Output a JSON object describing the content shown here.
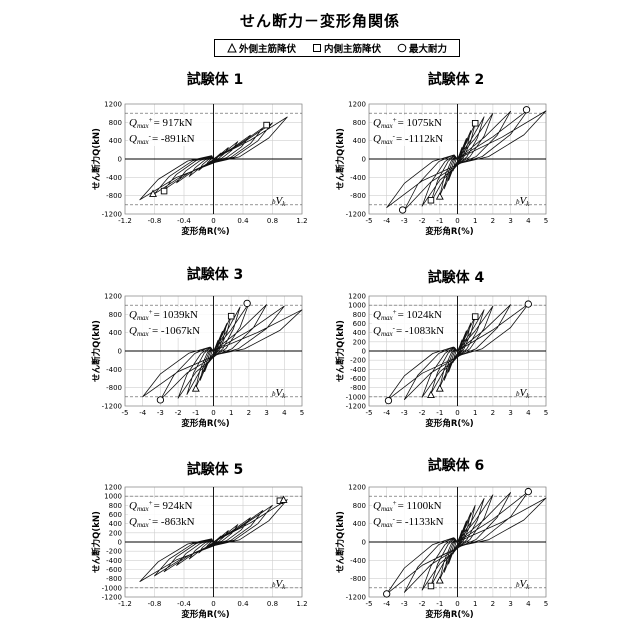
{
  "title": "せん断力－変形角関係",
  "legend": [
    {
      "symbol": "triangle",
      "label": "外側主筋降伏"
    },
    {
      "symbol": "square",
      "label": "内側主筋降伏"
    },
    {
      "symbol": "circle",
      "label": "最大耐力"
    }
  ],
  "chart_data": [
    {
      "type": "line",
      "title": "試験体 1",
      "xlabel": "変形角R(%)",
      "ylabel": "せん断力Q(kN)",
      "xlim": [
        -1.2,
        1.2
      ],
      "ylim": [
        -1200,
        1200
      ],
      "xticks": [
        "-1.2",
        "-0.8",
        "-0.4",
        "0",
        "0.4",
        "0.8",
        "1.2"
      ],
      "yticks": [
        "1200",
        "800",
        "400",
        "0",
        "-400",
        "-800",
        "-1200"
      ],
      "qmax_pos_label": "Q",
      "qmax_pos_sub": "max",
      "qmax_pos_sup": "+",
      "qmax_pos_value": "= 917kN",
      "qmax_neg_label": "Q",
      "qmax_neg_sub": "max",
      "qmax_neg_sup": "-",
      "qmax_neg_value": "= -891kN",
      "bvk_label": "V",
      "bvk_pre": "b",
      "bvk_sub": "k",
      "qmax_pos": 917,
      "qmax_neg": -891,
      "bvk": 1000,
      "loop_peaks": [
        0.1,
        0.2,
        0.33,
        0.5,
        0.67,
        0.8,
        1.0
      ],
      "envelope": [
        [
          0,
          0
        ],
        [
          0.1,
          130
        ],
        [
          0.2,
          250
        ],
        [
          0.33,
          380
        ],
        [
          0.5,
          520
        ],
        [
          0.67,
          680
        ],
        [
          0.8,
          790
        ],
        [
          1.0,
          917
        ]
      ],
      "neg_envelope": [
        [
          0,
          0
        ],
        [
          -0.1,
          -130
        ],
        [
          -0.2,
          -250
        ],
        [
          -0.33,
          -380
        ],
        [
          -0.5,
          -520
        ],
        [
          -0.67,
          -670
        ],
        [
          -0.8,
          -760
        ],
        [
          -1.0,
          -891
        ]
      ],
      "pinch": 0.05,
      "markers": [
        {
          "shape": "square",
          "x": 0.72,
          "y": 740
        },
        {
          "shape": "triangle",
          "x": -0.82,
          "y": -760
        },
        {
          "shape": "square",
          "x": -0.67,
          "y": -700
        }
      ]
    },
    {
      "type": "line",
      "title": "試験体 2",
      "xlabel": "変形角R(%)",
      "ylabel": "せん断力Q(kN)",
      "xlim": [
        -5,
        5
      ],
      "ylim": [
        -1200,
        1200
      ],
      "xticks": [
        "-5",
        "-4",
        "-3",
        "-2",
        "-1",
        "0",
        "1",
        "2",
        "3",
        "4",
        "5"
      ],
      "yticks": [
        "1200",
        "800",
        "400",
        "0",
        "-400",
        "-800",
        "-1200"
      ],
      "qmax_pos_label": "Q",
      "qmax_pos_sub": "max",
      "qmax_pos_sup": "+",
      "qmax_pos_value": "= 1075kN",
      "qmax_neg_label": "Q",
      "qmax_neg_sub": "max",
      "qmax_neg_sup": "-",
      "qmax_neg_value": "= -1112kN",
      "bvk_label": "V",
      "bvk_pre": "b",
      "bvk_sub": "k",
      "qmax_pos": 1075,
      "qmax_neg": -1112,
      "bvk": 1000,
      "loop_peaks": [
        0.25,
        0.5,
        0.75,
        1.0,
        1.5,
        2.0,
        3.0,
        4.0,
        5.0
      ],
      "envelope": [
        [
          0,
          0
        ],
        [
          0.25,
          250
        ],
        [
          0.5,
          450
        ],
        [
          0.75,
          620
        ],
        [
          1.0,
          780
        ],
        [
          1.5,
          920
        ],
        [
          2.0,
          1000
        ],
        [
          3.0,
          1040
        ],
        [
          4.0,
          1075
        ],
        [
          5.0,
          1050
        ]
      ],
      "neg_envelope": [
        [
          0,
          0
        ],
        [
          -0.25,
          -260
        ],
        [
          -0.5,
          -470
        ],
        [
          -0.75,
          -650
        ],
        [
          -1.0,
          -800
        ],
        [
          -1.5,
          -940
        ],
        [
          -2.0,
          -1030
        ],
        [
          -3.0,
          -1112
        ],
        [
          -4.0,
          -1060
        ]
      ],
      "pinch": 0.12,
      "markers": [
        {
          "shape": "circle",
          "x": 3.9,
          "y": 1075
        },
        {
          "shape": "circle",
          "x": -3.1,
          "y": -1112
        },
        {
          "shape": "square",
          "x": 1.0,
          "y": 780
        },
        {
          "shape": "triangle",
          "x": -1.0,
          "y": -820
        },
        {
          "shape": "square",
          "x": -1.5,
          "y": -900
        }
      ]
    },
    {
      "type": "line",
      "title": "試験体 3",
      "xlabel": "変形角R(%)",
      "ylabel": "せん断力Q(kN)",
      "xlim": [
        -5,
        5
      ],
      "ylim": [
        -1200,
        1200
      ],
      "xticks": [
        "-5",
        "-4",
        "-3",
        "-2",
        "-1",
        "0",
        "1",
        "2",
        "3",
        "4",
        "5"
      ],
      "yticks": [
        "1200",
        "800",
        "400",
        "0",
        "-400",
        "-800",
        "-1200"
      ],
      "qmax_pos_label": "Q",
      "qmax_pos_sub": "max",
      "qmax_pos_sup": "+",
      "qmax_pos_value": "= 1039kN",
      "qmax_neg_label": "Q",
      "qmax_neg_sub": "max",
      "qmax_neg_sup": "-",
      "qmax_neg_value": "= -1067kN",
      "bvk_label": "V",
      "bvk_pre": "b",
      "bvk_sub": "k",
      "qmax_pos": 1039,
      "qmax_neg": -1067,
      "bvk": 1000,
      "loop_peaks": [
        0.25,
        0.5,
        0.75,
        1.0,
        1.5,
        2.0,
        3.0,
        4.0,
        5.0
      ],
      "envelope": [
        [
          0,
          0
        ],
        [
          0.25,
          230
        ],
        [
          0.5,
          430
        ],
        [
          0.75,
          600
        ],
        [
          1.0,
          780
        ],
        [
          1.5,
          960
        ],
        [
          2.0,
          1039
        ],
        [
          3.0,
          1010
        ],
        [
          4.0,
          980
        ],
        [
          5.0,
          900
        ]
      ],
      "neg_envelope": [
        [
          0,
          0
        ],
        [
          -0.25,
          -240
        ],
        [
          -0.5,
          -450
        ],
        [
          -0.75,
          -640
        ],
        [
          -1.0,
          -800
        ],
        [
          -1.5,
          -950
        ],
        [
          -2.0,
          -1030
        ],
        [
          -3.0,
          -1067
        ],
        [
          -4.0,
          -1000
        ]
      ],
      "pinch": 0.12,
      "markers": [
        {
          "shape": "circle",
          "x": 1.9,
          "y": 1039
        },
        {
          "shape": "circle",
          "x": -3.0,
          "y": -1067
        },
        {
          "shape": "square",
          "x": 1.0,
          "y": 760
        },
        {
          "shape": "triangle",
          "x": -1.0,
          "y": -820
        }
      ]
    },
    {
      "type": "line",
      "title": "試験体 4",
      "xlabel": "変形角R(%)",
      "ylabel": "せん断力Q(kN)",
      "xlim": [
        -5,
        5
      ],
      "ylim": [
        -1200,
        1200
      ],
      "xticks": [
        "-5",
        "-4",
        "-3",
        "-2",
        "-1",
        "0",
        "1",
        "2",
        "3",
        "4",
        "5"
      ],
      "yticks": [
        "1200",
        "1000",
        "800",
        "600",
        "400",
        "200",
        "0",
        "-200",
        "-400",
        "-600",
        "-800",
        "-1000",
        "-1200"
      ],
      "qmax_pos_label": "Q",
      "qmax_pos_sub": "max",
      "qmax_pos_sup": "+",
      "qmax_pos_value": "= 1024kN",
      "qmax_neg_label": "Q",
      "qmax_neg_sub": "max",
      "qmax_neg_sup": "-",
      "qmax_neg_value": "= -1083kN",
      "bvk_label": "V",
      "bvk_pre": "b",
      "bvk_sub": "k",
      "qmax_pos": 1024,
      "qmax_neg": -1083,
      "bvk": 1000,
      "loop_peaks": [
        0.25,
        0.5,
        0.75,
        1.0,
        1.5,
        2.0,
        3.0,
        4.0
      ],
      "envelope": [
        [
          0,
          0
        ],
        [
          0.25,
          240
        ],
        [
          0.5,
          440
        ],
        [
          0.75,
          610
        ],
        [
          1.0,
          760
        ],
        [
          1.5,
          900
        ],
        [
          2.0,
          980
        ],
        [
          3.0,
          1010
        ],
        [
          4.0,
          1024
        ]
      ],
      "neg_envelope": [
        [
          0,
          0
        ],
        [
          -0.25,
          -250
        ],
        [
          -0.5,
          -460
        ],
        [
          -0.75,
          -640
        ],
        [
          -1.0,
          -790
        ],
        [
          -1.5,
          -930
        ],
        [
          -2.0,
          -1010
        ],
        [
          -3.0,
          -1060
        ],
        [
          -4.0,
          -1083
        ]
      ],
      "pinch": 0.12,
      "markers": [
        {
          "shape": "circle",
          "x": 4.0,
          "y": 1024
        },
        {
          "shape": "circle",
          "x": -3.9,
          "y": -1083
        },
        {
          "shape": "square",
          "x": 1.0,
          "y": 750
        },
        {
          "shape": "triangle",
          "x": -1.0,
          "y": -820
        },
        {
          "shape": "triangle",
          "x": -1.5,
          "y": -960
        }
      ]
    },
    {
      "type": "line",
      "title": "試験体 5",
      "xlabel": "変形角R(%)",
      "ylabel": "せん断力Q(kN)",
      "xlim": [
        -1.2,
        1.2
      ],
      "ylim": [
        -1200,
        1200
      ],
      "xticks": [
        "-1.2",
        "-0.8",
        "-0.4",
        "0",
        "0.4",
        "0.8",
        "1.2"
      ],
      "yticks": [
        "1200",
        "1000",
        "800",
        "600",
        "400",
        "200",
        "0",
        "-200",
        "-400",
        "-600",
        "-800",
        "-1000",
        "-1200"
      ],
      "qmax_pos_label": "Q",
      "qmax_pos_sub": "max",
      "qmax_pos_sup": "+",
      "qmax_pos_value": "= 924kN",
      "qmax_neg_label": "Q",
      "qmax_neg_sub": "max",
      "qmax_neg_sup": "-",
      "qmax_neg_value": "= -863kN",
      "bvk_label": "V",
      "bvk_pre": "b",
      "bvk_sub": "k",
      "qmax_pos": 924,
      "qmax_neg": -863,
      "bvk": 1000,
      "loop_peaks": [
        0.1,
        0.2,
        0.33,
        0.5,
        0.67,
        0.8,
        1.0
      ],
      "envelope": [
        [
          0,
          0
        ],
        [
          0.1,
          130
        ],
        [
          0.2,
          250
        ],
        [
          0.33,
          380
        ],
        [
          0.5,
          530
        ],
        [
          0.67,
          690
        ],
        [
          0.8,
          800
        ],
        [
          1.0,
          924
        ]
      ],
      "neg_envelope": [
        [
          0,
          0
        ],
        [
          -0.1,
          -120
        ],
        [
          -0.2,
          -240
        ],
        [
          -0.33,
          -370
        ],
        [
          -0.5,
          -510
        ],
        [
          -0.67,
          -650
        ],
        [
          -0.8,
          -740
        ],
        [
          -1.0,
          -863
        ]
      ],
      "pinch": 0.05,
      "markers": [
        {
          "shape": "square",
          "x": 0.9,
          "y": 900
        },
        {
          "shape": "triangle",
          "x": 0.95,
          "y": 920
        }
      ]
    },
    {
      "type": "line",
      "title": "試験体 6",
      "xlabel": "変形角R(%)",
      "ylabel": "せん断力Q(kN)",
      "xlim": [
        -5,
        5
      ],
      "ylim": [
        -1200,
        1200
      ],
      "xticks": [
        "-5",
        "-4",
        "-3",
        "-2",
        "-1",
        "0",
        "1",
        "2",
        "3",
        "4",
        "5"
      ],
      "yticks": [
        "1200",
        "800",
        "400",
        "0",
        "-400",
        "-800",
        "-1200"
      ],
      "qmax_pos_label": "Q",
      "qmax_pos_sub": "max",
      "qmax_pos_sup": "+",
      "qmax_pos_value": "= 1100kN",
      "qmax_neg_label": "Q",
      "qmax_neg_sub": "max",
      "qmax_neg_sup": "-",
      "qmax_neg_value": "= -1133kN",
      "bvk_label": "V",
      "bvk_pre": "b",
      "bvk_sub": "k",
      "qmax_pos": 1100,
      "qmax_neg": -1133,
      "bvk": 1000,
      "loop_peaks": [
        0.25,
        0.5,
        0.75,
        1.0,
        1.5,
        2.0,
        3.0,
        4.0,
        5.0
      ],
      "envelope": [
        [
          0,
          0
        ],
        [
          0.25,
          250
        ],
        [
          0.5,
          460
        ],
        [
          0.75,
          640
        ],
        [
          1.0,
          800
        ],
        [
          1.5,
          950
        ],
        [
          2.0,
          1030
        ],
        [
          3.0,
          1080
        ],
        [
          4.0,
          1100
        ],
        [
          5.0,
          960
        ]
      ],
      "neg_envelope": [
        [
          0,
          0
        ],
        [
          -0.25,
          -260
        ],
        [
          -0.5,
          -480
        ],
        [
          -0.75,
          -660
        ],
        [
          -1.0,
          -820
        ],
        [
          -1.5,
          -960
        ],
        [
          -2.0,
          -1050
        ],
        [
          -3.0,
          -1100
        ],
        [
          -4.0,
          -1133
        ]
      ],
      "pinch": 0.12,
      "markers": [
        {
          "shape": "circle",
          "x": 4.0,
          "y": 1100
        },
        {
          "shape": "circle",
          "x": -4.0,
          "y": -1133
        },
        {
          "shape": "triangle",
          "x": -1.0,
          "y": -840
        },
        {
          "shape": "square",
          "x": -1.5,
          "y": -960
        }
      ]
    }
  ]
}
